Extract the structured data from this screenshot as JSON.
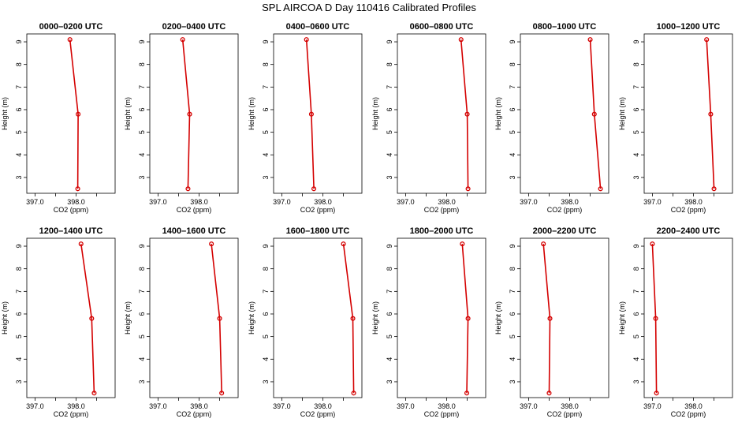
{
  "figure": {
    "title": "SPL AIRCOA D  Day 110416  Calibrated Profiles"
  },
  "colors": {
    "profile_line": "#d40000",
    "marker": "#d40000",
    "axes": "#000000"
  },
  "chart_data": [
    {
      "type": "line",
      "title": "0000–0200 UTC",
      "xlabel": "CO2 (ppm)",
      "ylabel": "Height (m)",
      "xlim": [
        396.8,
        398.95
      ],
      "ylim": [
        2.3,
        9.35
      ],
      "xticks": [
        397.0,
        397.5,
        398.0,
        398.5
      ],
      "xtick_labels": [
        "397.0",
        "",
        "398.0",
        ""
      ],
      "yticks": [
        3,
        4,
        5,
        6,
        7,
        8,
        9
      ],
      "ytick_labels": [
        "3",
        "4",
        "5",
        "6",
        "7",
        "8",
        "9"
      ],
      "series": [
        {
          "x": [
            398.04,
            398.05,
            397.85
          ],
          "y": [
            2.5,
            5.8,
            9.1
          ]
        }
      ]
    },
    {
      "type": "line",
      "title": "0200–0400 UTC",
      "xlabel": "CO2 (ppm)",
      "ylabel": "Height (m)",
      "xlim": [
        396.8,
        398.95
      ],
      "ylim": [
        2.3,
        9.35
      ],
      "xticks": [
        397.0,
        397.5,
        398.0,
        398.5
      ],
      "xtick_labels": [
        "397.0",
        "",
        "398.0",
        ""
      ],
      "yticks": [
        3,
        4,
        5,
        6,
        7,
        8,
        9
      ],
      "ytick_labels": [
        "3",
        "4",
        "5",
        "6",
        "7",
        "8",
        "9"
      ],
      "series": [
        {
          "x": [
            397.73,
            397.77,
            397.6
          ],
          "y": [
            2.5,
            5.8,
            9.1
          ]
        }
      ]
    },
    {
      "type": "line",
      "title": "0400–0600 UTC",
      "xlabel": "CO2 (ppm)",
      "ylabel": "Height (m)",
      "xlim": [
        396.8,
        398.95
      ],
      "ylim": [
        2.3,
        9.35
      ],
      "xticks": [
        397.0,
        397.5,
        398.0,
        398.5
      ],
      "xtick_labels": [
        "397.0",
        "",
        "398.0",
        ""
      ],
      "yticks": [
        3,
        4,
        5,
        6,
        7,
        8,
        9
      ],
      "ytick_labels": [
        "3",
        "4",
        "5",
        "6",
        "7",
        "8",
        "9"
      ],
      "series": [
        {
          "x": [
            397.78,
            397.72,
            397.6
          ],
          "y": [
            2.5,
            5.8,
            9.1
          ]
        }
      ]
    },
    {
      "type": "line",
      "title": "0600–0800 UTC",
      "xlabel": "CO2 (ppm)",
      "ylabel": "Height (m)",
      "xlim": [
        396.8,
        398.95
      ],
      "ylim": [
        2.3,
        9.35
      ],
      "xticks": [
        397.0,
        397.5,
        398.0,
        398.5
      ],
      "xtick_labels": [
        "397.0",
        "",
        "398.0",
        ""
      ],
      "yticks": [
        3,
        4,
        5,
        6,
        7,
        8,
        9
      ],
      "ytick_labels": [
        "3",
        "4",
        "5",
        "6",
        "7",
        "8",
        "9"
      ],
      "series": [
        {
          "x": [
            398.52,
            398.5,
            398.35
          ],
          "y": [
            2.5,
            5.8,
            9.1
          ]
        }
      ]
    },
    {
      "type": "line",
      "title": "0800–1000 UTC",
      "xlabel": "CO2 (ppm)",
      "ylabel": "Height (m)",
      "xlim": [
        396.8,
        398.95
      ],
      "ylim": [
        2.3,
        9.35
      ],
      "xticks": [
        397.0,
        397.5,
        398.0,
        398.5
      ],
      "xtick_labels": [
        "397.0",
        "",
        "398.0",
        ""
      ],
      "yticks": [
        3,
        4,
        5,
        6,
        7,
        8,
        9
      ],
      "ytick_labels": [
        "3",
        "4",
        "5",
        "6",
        "7",
        "8",
        "9"
      ],
      "series": [
        {
          "x": [
            398.75,
            398.6,
            398.5
          ],
          "y": [
            2.5,
            5.8,
            9.1
          ]
        }
      ]
    },
    {
      "type": "line",
      "title": "1000–1200 UTC",
      "xlabel": "CO2 (ppm)",
      "ylabel": "Height (m)",
      "xlim": [
        396.8,
        398.95
      ],
      "ylim": [
        2.3,
        9.35
      ],
      "xticks": [
        397.0,
        397.5,
        398.0,
        398.5
      ],
      "xtick_labels": [
        "397.0",
        "",
        "398.0",
        ""
      ],
      "yticks": [
        3,
        4,
        5,
        6,
        7,
        8,
        9
      ],
      "ytick_labels": [
        "3",
        "4",
        "5",
        "6",
        "7",
        "8",
        "9"
      ],
      "series": [
        {
          "x": [
            398.5,
            398.42,
            398.32
          ],
          "y": [
            2.5,
            5.8,
            9.1
          ]
        }
      ]
    },
    {
      "type": "line",
      "title": "1200–1400 UTC",
      "xlabel": "CO2 (ppm)",
      "ylabel": "Height (m)",
      "xlim": [
        396.8,
        398.95
      ],
      "ylim": [
        2.3,
        9.35
      ],
      "xticks": [
        397.0,
        397.5,
        398.0,
        398.5
      ],
      "xtick_labels": [
        "397.0",
        "",
        "398.0",
        ""
      ],
      "yticks": [
        3,
        4,
        5,
        6,
        7,
        8,
        9
      ],
      "ytick_labels": [
        "3",
        "4",
        "5",
        "6",
        "7",
        "8",
        "9"
      ],
      "series": [
        {
          "x": [
            398.44,
            398.38,
            398.12
          ],
          "y": [
            2.5,
            5.8,
            9.1
          ]
        }
      ]
    },
    {
      "type": "line",
      "title": "1400–1600 UTC",
      "xlabel": "CO2 (ppm)",
      "ylabel": "Height (m)",
      "xlim": [
        396.8,
        398.95
      ],
      "ylim": [
        2.3,
        9.35
      ],
      "xticks": [
        397.0,
        397.5,
        398.0,
        398.5
      ],
      "xtick_labels": [
        "397.0",
        "",
        "398.0",
        ""
      ],
      "yticks": [
        3,
        4,
        5,
        6,
        7,
        8,
        9
      ],
      "ytick_labels": [
        "3",
        "4",
        "5",
        "6",
        "7",
        "8",
        "9"
      ],
      "series": [
        {
          "x": [
            398.55,
            398.5,
            398.3
          ],
          "y": [
            2.5,
            5.8,
            9.1
          ]
        }
      ]
    },
    {
      "type": "line",
      "title": "1600–1800 UTC",
      "xlabel": "CO2 (ppm)",
      "ylabel": "Height (m)",
      "xlim": [
        396.8,
        398.95
      ],
      "ylim": [
        2.3,
        9.35
      ],
      "xticks": [
        397.0,
        397.5,
        398.0,
        398.5
      ],
      "xtick_labels": [
        "397.0",
        "",
        "398.0",
        ""
      ],
      "yticks": [
        3,
        4,
        5,
        6,
        7,
        8,
        9
      ],
      "ytick_labels": [
        "3",
        "4",
        "5",
        "6",
        "7",
        "8",
        "9"
      ],
      "series": [
        {
          "x": [
            398.75,
            398.73,
            398.5
          ],
          "y": [
            2.5,
            5.8,
            9.1
          ]
        }
      ]
    },
    {
      "type": "line",
      "title": "1800–2000 UTC",
      "xlabel": "CO2 (ppm)",
      "ylabel": "Height (m)",
      "xlim": [
        396.8,
        398.95
      ],
      "ylim": [
        2.3,
        9.35
      ],
      "xticks": [
        397.0,
        397.5,
        398.0,
        398.5
      ],
      "xtick_labels": [
        "397.0",
        "",
        "398.0",
        ""
      ],
      "yticks": [
        3,
        4,
        5,
        6,
        7,
        8,
        9
      ],
      "ytick_labels": [
        "3",
        "4",
        "5",
        "6",
        "7",
        "8",
        "9"
      ],
      "series": [
        {
          "x": [
            398.49,
            398.52,
            398.38
          ],
          "y": [
            2.5,
            5.8,
            9.1
          ]
        }
      ]
    },
    {
      "type": "line",
      "title": "2000–2200 UTC",
      "xlabel": "CO2 (ppm)",
      "ylabel": "Height (m)",
      "xlim": [
        396.8,
        398.95
      ],
      "ylim": [
        2.3,
        9.35
      ],
      "xticks": [
        397.0,
        397.5,
        398.0,
        398.5
      ],
      "xtick_labels": [
        "397.0",
        "",
        "398.0",
        ""
      ],
      "yticks": [
        3,
        4,
        5,
        6,
        7,
        8,
        9
      ],
      "ytick_labels": [
        "3",
        "4",
        "5",
        "6",
        "7",
        "8",
        "9"
      ],
      "series": [
        {
          "x": [
            397.5,
            397.52,
            397.36
          ],
          "y": [
            2.5,
            5.8,
            9.1
          ]
        }
      ]
    },
    {
      "type": "line",
      "title": "2200–2400 UTC",
      "xlabel": "CO2 (ppm)",
      "ylabel": "Height (m)",
      "xlim": [
        396.8,
        398.95
      ],
      "ylim": [
        2.3,
        9.35
      ],
      "xticks": [
        397.0,
        397.5,
        398.0,
        398.5
      ],
      "xtick_labels": [
        "397.0",
        "",
        "398.0",
        ""
      ],
      "yticks": [
        3,
        4,
        5,
        6,
        7,
        8,
        9
      ],
      "ytick_labels": [
        "3",
        "4",
        "5",
        "6",
        "7",
        "8",
        "9"
      ],
      "series": [
        {
          "x": [
            397.1,
            397.08,
            397.0
          ],
          "y": [
            2.5,
            5.8,
            9.1
          ]
        }
      ]
    }
  ]
}
